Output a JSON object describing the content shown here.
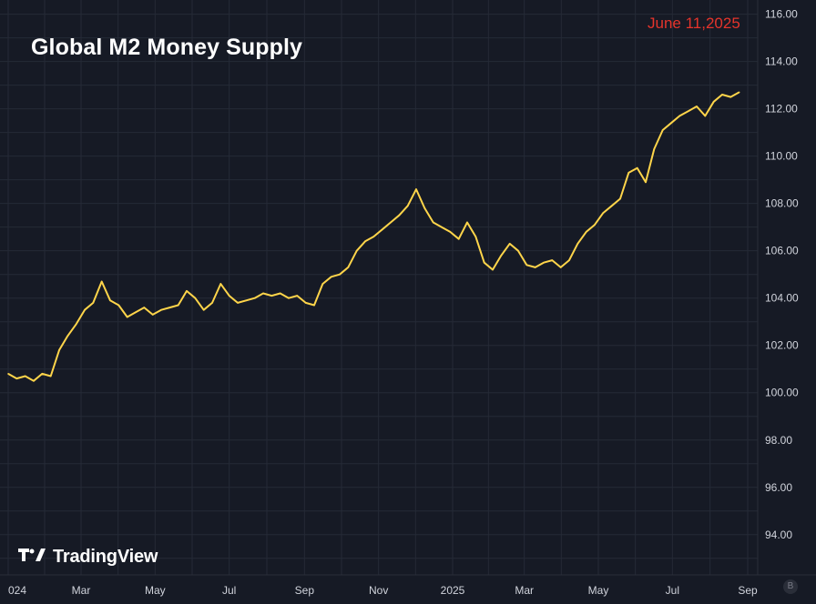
{
  "header": {
    "title": "Global M2 Money Supply",
    "date_label": "June 11,2025"
  },
  "branding": {
    "name": "TradingView",
    "badge": "B"
  },
  "colors": {
    "background": "#161a25",
    "line": "#ffd54a",
    "grid": "#252a36",
    "axis_text": "#d1d4dc",
    "date_text": "#e5342b"
  },
  "chart_data": {
    "type": "line",
    "title": "Global M2 Money Supply",
    "xlabel": "",
    "ylabel": "",
    "y_axis_position": "right",
    "grid": true,
    "ylim": [
      92.3,
      116.6
    ],
    "xlim": [
      "2024-01-01",
      "2025-09-22"
    ],
    "y_ticks": [
      "116.00",
      "114.00",
      "112.00",
      "110.00",
      "108.00",
      "106.00",
      "104.00",
      "102.00",
      "100.00",
      "98.00",
      "96.00",
      "94.00"
    ],
    "x_ticks": [
      {
        "label": "024",
        "date": "2024-01-01"
      },
      {
        "label": "Mar",
        "date": "2024-03-01"
      },
      {
        "label": "May",
        "date": "2024-05-01"
      },
      {
        "label": "Jul",
        "date": "2024-07-01"
      },
      {
        "label": "Sep",
        "date": "2024-09-01"
      },
      {
        "label": "Nov",
        "date": "2024-11-01"
      },
      {
        "label": "2025",
        "date": "2025-01-01"
      },
      {
        "label": "Mar",
        "date": "2025-03-01"
      },
      {
        "label": "May",
        "date": "2025-05-01"
      },
      {
        "label": "Jul",
        "date": "2025-07-01"
      },
      {
        "label": "Sep",
        "date": "2025-09-01"
      }
    ],
    "series": [
      {
        "name": "",
        "x": [
          "2024-01-01",
          "2024-01-08",
          "2024-01-15",
          "2024-01-22",
          "2024-01-29",
          "2024-02-05",
          "2024-02-12",
          "2024-02-19",
          "2024-02-26",
          "2024-03-04",
          "2024-03-11",
          "2024-03-18",
          "2024-03-25",
          "2024-04-01",
          "2024-04-08",
          "2024-04-15",
          "2024-04-22",
          "2024-04-29",
          "2024-05-06",
          "2024-05-13",
          "2024-05-20",
          "2024-05-27",
          "2024-06-03",
          "2024-06-10",
          "2024-06-17",
          "2024-06-24",
          "2024-07-01",
          "2024-07-08",
          "2024-07-15",
          "2024-07-22",
          "2024-07-29",
          "2024-08-05",
          "2024-08-12",
          "2024-08-19",
          "2024-08-26",
          "2024-09-02",
          "2024-09-09",
          "2024-09-16",
          "2024-09-23",
          "2024-09-30",
          "2024-10-07",
          "2024-10-14",
          "2024-10-21",
          "2024-10-28",
          "2024-11-04",
          "2024-11-11",
          "2024-11-18",
          "2024-11-25",
          "2024-12-02",
          "2024-12-09",
          "2024-12-16",
          "2024-12-23",
          "2024-12-30",
          "2025-01-06",
          "2025-01-13",
          "2025-01-20",
          "2025-01-27",
          "2025-02-03",
          "2025-02-10",
          "2025-02-17",
          "2025-02-24",
          "2025-03-03",
          "2025-03-10",
          "2025-03-17",
          "2025-03-24",
          "2025-03-31",
          "2025-04-07",
          "2025-04-14",
          "2025-04-21",
          "2025-04-28",
          "2025-05-05",
          "2025-05-12",
          "2025-05-19",
          "2025-05-26",
          "2025-06-02",
          "2025-06-09",
          "2025-06-16",
          "2025-06-23",
          "2025-06-30",
          "2025-07-07",
          "2025-07-14",
          "2025-07-21",
          "2025-07-28",
          "2025-08-04",
          "2025-08-11",
          "2025-08-18",
          "2025-08-25"
        ],
        "values": [
          100.8,
          100.6,
          100.7,
          100.5,
          100.8,
          100.7,
          101.8,
          102.4,
          102.9,
          103.5,
          103.8,
          104.7,
          103.9,
          103.7,
          103.2,
          103.4,
          103.6,
          103.3,
          103.5,
          103.6,
          103.7,
          104.3,
          104.0,
          103.5,
          103.8,
          104.6,
          104.1,
          103.8,
          103.9,
          104.0,
          104.2,
          104.1,
          104.2,
          104.0,
          104.1,
          103.8,
          103.7,
          104.6,
          104.9,
          105.0,
          105.3,
          106.0,
          106.4,
          106.6,
          106.9,
          107.2,
          107.5,
          107.9,
          108.6,
          107.8,
          107.2,
          107.0,
          106.8,
          106.5,
          107.2,
          106.6,
          105.5,
          105.2,
          105.8,
          106.3,
          106.0,
          105.4,
          105.3,
          105.5,
          105.6,
          105.3,
          105.6,
          106.3,
          106.8,
          107.1,
          107.6,
          107.9,
          108.2,
          109.3,
          109.5,
          108.9,
          110.3,
          111.1,
          111.4,
          111.7,
          111.9,
          112.1,
          111.7,
          112.3,
          112.6,
          112.5,
          112.7
        ]
      }
    ]
  }
}
